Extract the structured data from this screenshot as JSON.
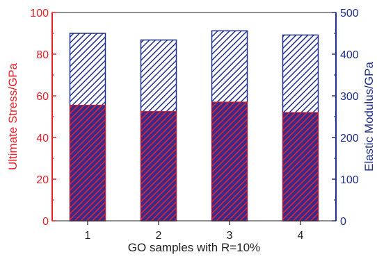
{
  "chart_data": {
    "type": "bar",
    "xlabel": "GO samples with R=10%",
    "categories": [
      "1",
      "2",
      "3",
      "4"
    ],
    "y_left": {
      "label": "Ultimate Stress/GPa",
      "lim": [
        0,
        100
      ],
      "ticks": [
        "0",
        "20",
        "40",
        "60",
        "80",
        "100"
      ],
      "color": "#e8202a"
    },
    "y_right": {
      "label": "Elastic Modulus/GPa",
      "lim": [
        0,
        500
      ],
      "ticks": [
        "0",
        "100",
        "200",
        "300",
        "400",
        "500"
      ],
      "color": "#1f2f8c"
    },
    "series": [
      {
        "name": "Elastic Modulus",
        "axis": "right",
        "values": [
          450,
          434,
          456,
          446
        ],
        "color": "#1f2f8c",
        "pattern": "blue-hatch"
      },
      {
        "name": "Ultimate Stress",
        "axis": "left",
        "values": [
          55.5,
          52.5,
          57,
          52
        ],
        "color": "#b0263a",
        "pattern": "red-hatch"
      }
    ],
    "grid": false,
    "legend": "none"
  }
}
